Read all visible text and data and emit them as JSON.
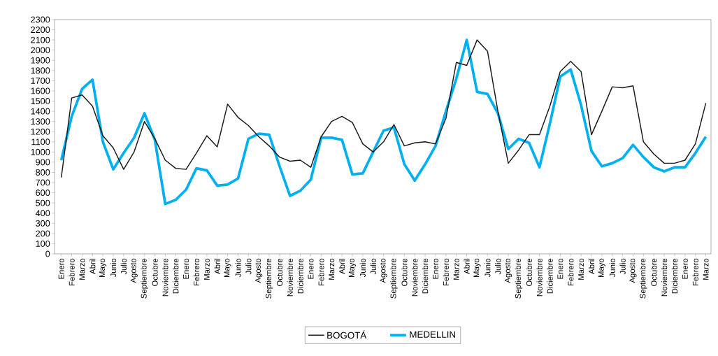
{
  "chart_data": {
    "type": "line",
    "categories": [
      "Enero",
      "Febrero",
      "Marzo",
      "Abril",
      "Mayo",
      "Junio",
      "Julio",
      "Agosto",
      "Septiembre",
      "Octubre",
      "Noviembre",
      "Diciembre",
      "Enero",
      "Febrero",
      "Marzo",
      "Abril",
      "Mayo",
      "Junio",
      "Julio",
      "Agosto",
      "Septiembre",
      "Octubre",
      "Noviembre",
      "Diciembre",
      "Enero",
      "Febrero",
      "Marzo",
      "Abril",
      "Mayo",
      "Junio",
      "Julio",
      "Agosto",
      "Septiembre",
      "Octubre",
      "Noviembre",
      "Diciembre",
      "Enero",
      "Febrero",
      "Marzo",
      "Abril",
      "Mayo",
      "Junio",
      "Julio",
      "Agosto",
      "Septiembre",
      "Octubre",
      "Noviembre",
      "Diciembre",
      "Enero",
      "Febrero",
      "Marzo",
      "Abril",
      "Mayo",
      "Junio",
      "Julio",
      "Agosto",
      "Septiembre",
      "Octubre",
      "Noviembre",
      "Diciembre",
      "Enero",
      "Febrero",
      "Marzo"
    ],
    "series": [
      {
        "name": "BOGOTÁ",
        "color": "#1a1a1a",
        "values": [
          750,
          1530,
          1560,
          1450,
          1160,
          1040,
          830,
          1000,
          1300,
          1130,
          920,
          840,
          830,
          990,
          1160,
          1050,
          1470,
          1340,
          1260,
          1150,
          1060,
          950,
          910,
          920,
          850,
          1150,
          1300,
          1350,
          1290,
          1080,
          1000,
          1100,
          1270,
          1060,
          1090,
          1100,
          1080,
          1330,
          1880,
          1850,
          2100,
          1990,
          1400,
          890,
          1020,
          1170,
          1170,
          1450,
          1790,
          1890,
          1790,
          1170,
          1400,
          1640,
          1630,
          1650,
          1100,
          980,
          890,
          890,
          920,
          1080,
          1480
        ]
      },
      {
        "name": "MEDELLIN",
        "color": "#00b0f0",
        "values": [
          920,
          1350,
          1620,
          1710,
          1100,
          830,
          990,
          1140,
          1380,
          1120,
          490,
          530,
          630,
          840,
          820,
          670,
          680,
          740,
          1130,
          1180,
          1170,
          860,
          570,
          620,
          730,
          1140,
          1140,
          1120,
          780,
          790,
          1000,
          1210,
          1240,
          880,
          720,
          880,
          1060,
          1400,
          1720,
          2100,
          1590,
          1570,
          1380,
          1030,
          1130,
          1090,
          850,
          1280,
          1740,
          1810,
          1460,
          1010,
          860,
          890,
          940,
          1070,
          950,
          850,
          810,
          850,
          850,
          990,
          1150
        ]
      }
    ],
    "ylim": [
      0,
      2300
    ],
    "yticks": [
      0,
      100,
      200,
      300,
      400,
      500,
      600,
      700,
      800,
      900,
      1000,
      1100,
      1200,
      1300,
      1400,
      1500,
      1600,
      1700,
      1800,
      1900,
      2000,
      2100,
      2200,
      2300
    ],
    "grid": false,
    "legend": "bottom",
    "marker": "none",
    "line_style": "solid"
  }
}
